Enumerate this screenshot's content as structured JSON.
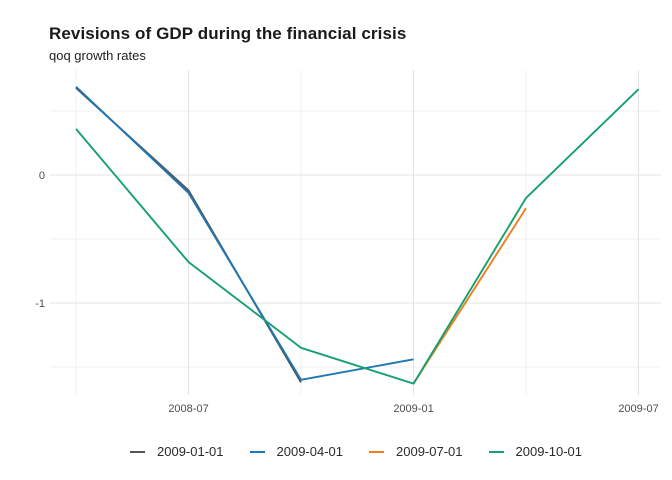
{
  "header": {
    "title": "Revisions of GDP during the financial crisis",
    "subtitle": "qoq growth rates"
  },
  "chart_data": {
    "type": "line",
    "title": "Revisions of GDP during the financial crisis",
    "subtitle": "qoq growth rates",
    "xlabel": "",
    "ylabel": "",
    "x_tick_labels": [
      "2008-07",
      "2009-01",
      "2009-07"
    ],
    "x_minor_ticks": [
      "2008-04",
      "2008-10",
      "2009-04"
    ],
    "y_ticks": [
      {
        "value": 0,
        "label": "0"
      },
      {
        "value": -1,
        "label": "-1"
      }
    ],
    "y_minor_ticks": [
      0.5,
      -0.5,
      -1.5
    ],
    "ylim": [
      -1.72,
      0.82
    ],
    "xlim": [
      "2008-03",
      "2009-08"
    ],
    "grid": true,
    "legend_position": "bottom",
    "series": [
      {
        "name": "2009-01-01",
        "color": "#555555",
        "x": [
          "2008-04",
          "2008-07",
          "2008-10"
        ],
        "values": [
          0.68,
          -0.12,
          -1.62
        ]
      },
      {
        "name": "2009-04-01",
        "color": "#1f77b4",
        "x": [
          "2008-04",
          "2008-07",
          "2008-10",
          "2009-01"
        ],
        "values": [
          0.69,
          -0.14,
          -1.6,
          -1.44
        ]
      },
      {
        "name": "2009-07-01",
        "color": "#ef7e1b",
        "x": [
          "2009-01",
          "2009-04"
        ],
        "values": [
          -1.63,
          -0.26
        ]
      },
      {
        "name": "2009-10-01",
        "color": "#16a072",
        "x": [
          "2008-04",
          "2008-07",
          "2008-10",
          "2009-01",
          "2009-04",
          "2009-07"
        ],
        "values": [
          0.36,
          -0.68,
          -1.35,
          -1.63,
          -0.18,
          0.67
        ]
      }
    ],
    "style": {
      "major_grid_color": "#e3e3e3",
      "minor_grid_color": "#f1f1f1",
      "axis_label_color": "#4d4d4d",
      "background": "#ffffff"
    }
  }
}
